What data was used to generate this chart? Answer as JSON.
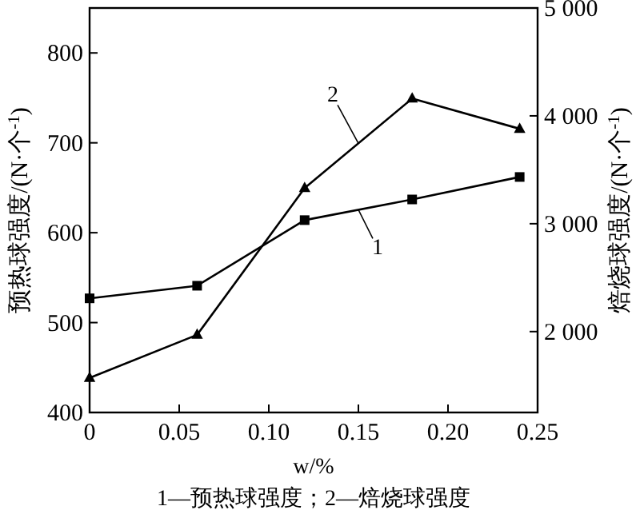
{
  "chart_data": {
    "type": "line",
    "xlabel": "w/%",
    "ylabel": "预热球强度/(N·个$^{-1}$)",
    "y2label": "焙烧球强度/(N·个$^{-1}$)",
    "x": [
      0,
      0.06,
      0.12,
      0.18,
      0.24
    ],
    "series": [
      {
        "name": "1",
        "color": "#000000",
        "marker": "square",
        "values": [
          527,
          541,
          614,
          637,
          662
        ]
      },
      {
        "name": "2",
        "color": "#000000",
        "marker": "triangle",
        "axis": "y2",
        "values": [
          1570,
          1970,
          3330,
          4160,
          3880
        ]
      }
    ],
    "xlim": [
      0,
      0.25
    ],
    "xticks": [
      0,
      {
        "value": 0.05,
        "label": "0.05"
      },
      {
        "value": 0.1,
        "label": "0.10"
      },
      {
        "value": 0.15,
        "label": "0.15"
      },
      {
        "value": 0.2,
        "label": "0.20"
      },
      {
        "value": 0.25,
        "label": "0.25"
      }
    ],
    "ylim": [
      400,
      850
    ],
    "yticks": [
      400,
      500,
      600,
      700,
      800
    ],
    "y2lim": [
      1250,
      5000
    ],
    "y2ticks": [
      {
        "value": 2000,
        "label": "2 000"
      },
      {
        "value": 3000,
        "label": "3 000"
      },
      {
        "value": 4000,
        "label": "4 000"
      },
      {
        "value": 5000,
        "label": "5 000"
      }
    ],
    "annotations": [
      "1—预热球强度；2—焙烧球强度"
    ],
    "grid": false,
    "line_style": "solid"
  }
}
